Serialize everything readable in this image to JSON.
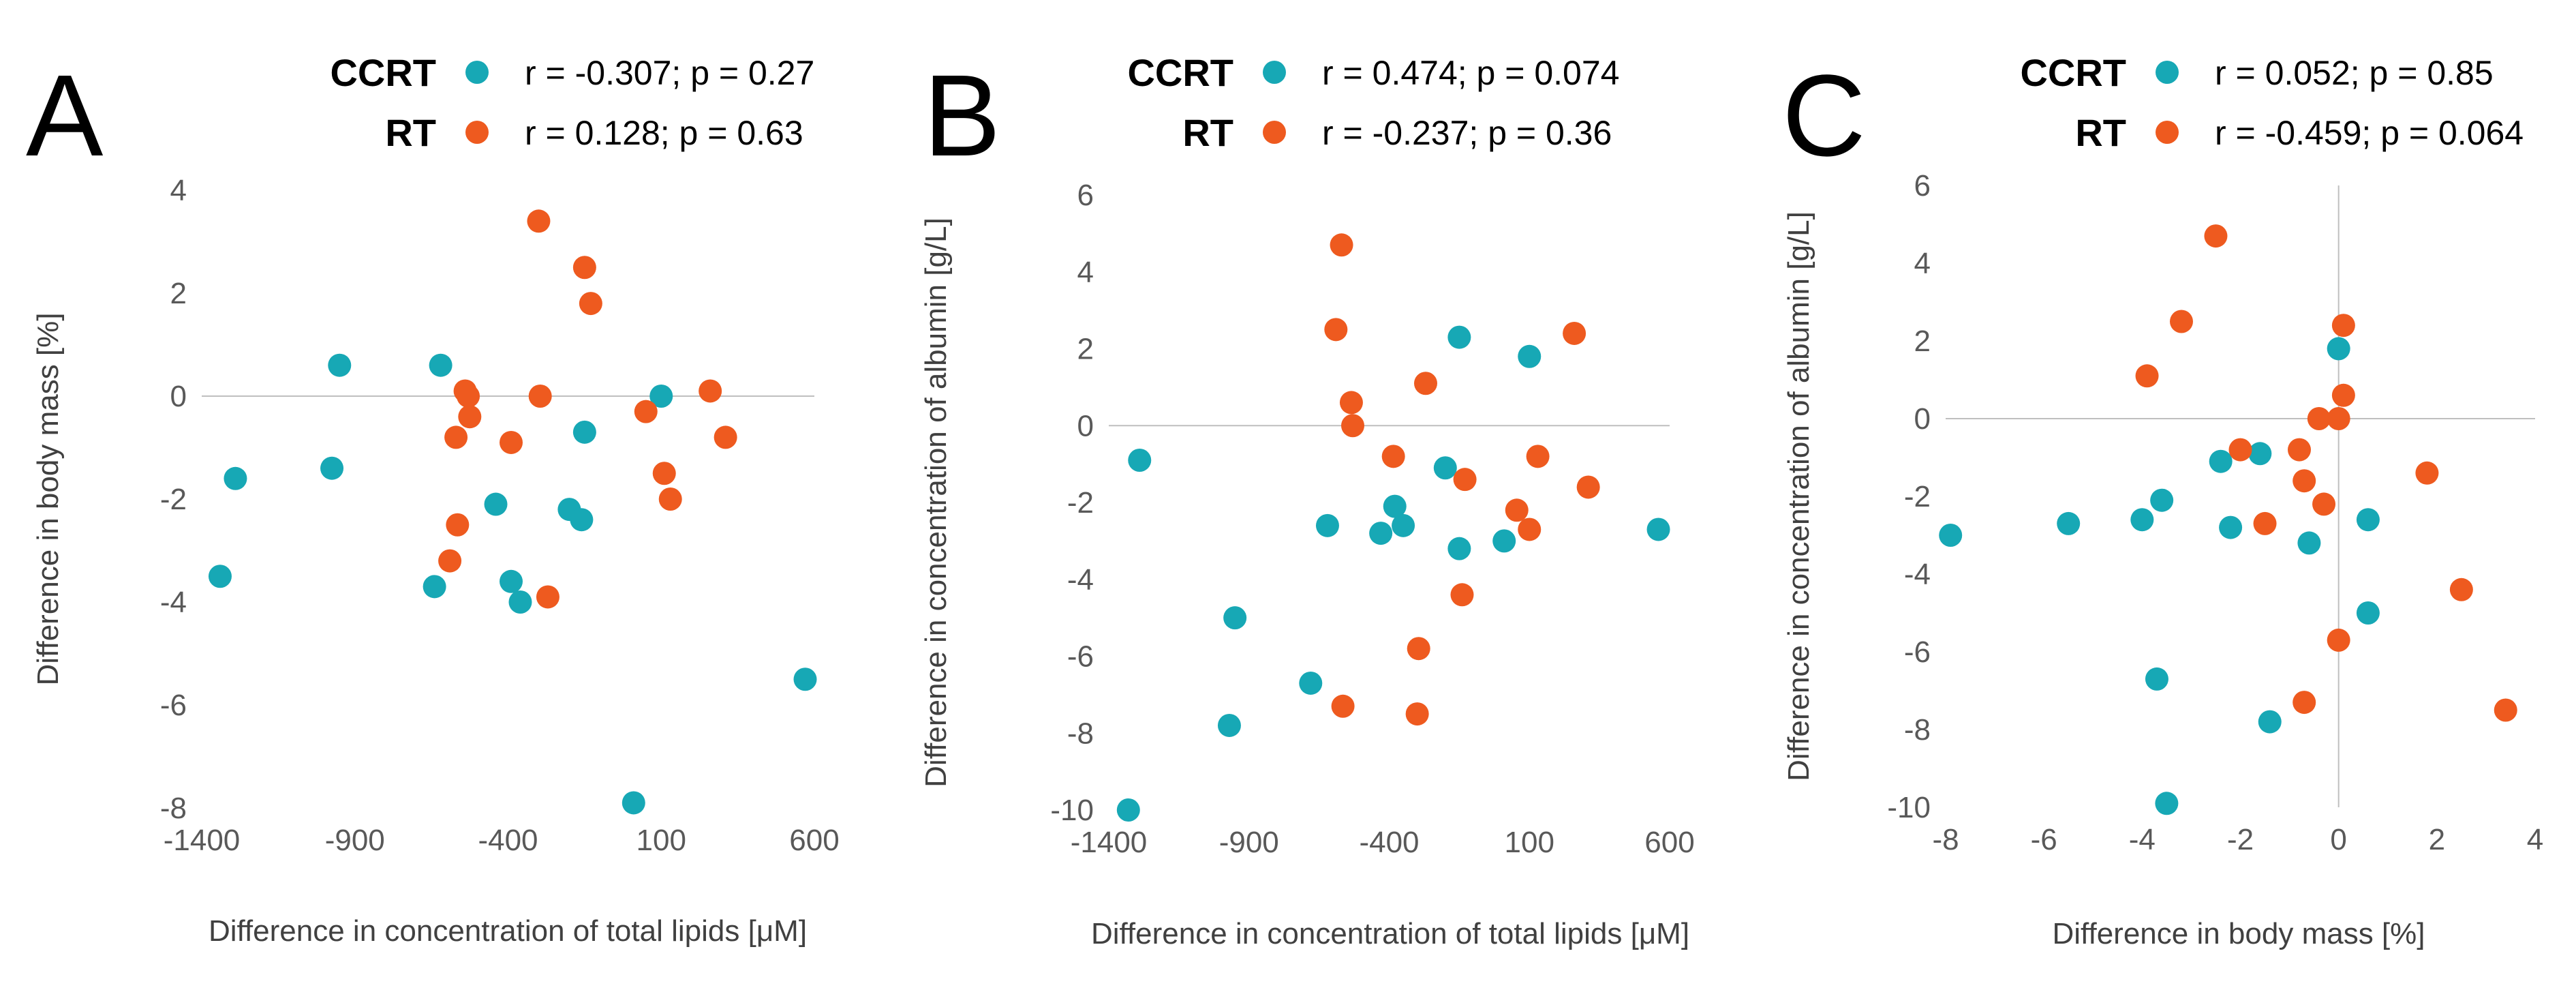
{
  "colors": {
    "CCRT": "#17a8b5",
    "RT": "#ee5a1f"
  },
  "chart_data": [
    {
      "type": "scatter",
      "panel": "A",
      "xlabel": "Difference in concentration of total lipids  [μM]",
      "ylabel": "Difference in body mass [%]",
      "xlim": [
        -1400,
        600
      ],
      "ylim": [
        -8,
        4
      ],
      "xticks": [
        -1400,
        -900,
        -400,
        100,
        600
      ],
      "yticks": [
        -8,
        -6,
        -4,
        -2,
        0,
        2,
        4
      ],
      "series": [
        {
          "name": "CCRT",
          "stats": "r = -0.307; p = 0.27",
          "x": [
            -1340,
            -1290,
            -975,
            -950,
            -640,
            -620,
            -440,
            -390,
            -360,
            -200,
            -160,
            -150,
            10,
            100,
            570
          ],
          "y": [
            -3.5,
            -1.6,
            -1.4,
            0.6,
            -3.7,
            0.6,
            -2.1,
            -3.6,
            -4.0,
            -2.2,
            -2.4,
            -0.7,
            -7.9,
            0.0,
            -5.5
          ]
        },
        {
          "name": "RT",
          "stats": "r = 0.128; p = 0.63",
          "x": [
            -590,
            -570,
            -565,
            -540,
            -530,
            -525,
            -390,
            -300,
            -295,
            -270,
            -150,
            -130,
            50,
            110,
            130,
            260,
            310
          ],
          "y": [
            -3.2,
            -0.8,
            -2.5,
            0.1,
            0.0,
            -0.4,
            -0.9,
            3.4,
            0.0,
            -3.9,
            2.5,
            1.8,
            -0.3,
            -1.5,
            -2.0,
            0.1,
            -0.8
          ]
        }
      ]
    },
    {
      "type": "scatter",
      "panel": "B",
      "xlabel": "Difference in concentration of total lipids  [μM]",
      "ylabel": "Difference in concentration of albumin [g/L]",
      "xlim": [
        -1400,
        600
      ],
      "ylim": [
        -10,
        6
      ],
      "xticks": [
        -1400,
        -900,
        -400,
        100,
        600
      ],
      "yticks": [
        -10,
        -8,
        -6,
        -4,
        -2,
        0,
        2,
        4,
        6
      ],
      "series": [
        {
          "name": "CCRT",
          "stats": "r = 0.474; p = 0.074",
          "x": [
            -1330,
            -1290,
            -970,
            -950,
            -680,
            -620,
            -430,
            -380,
            -350,
            -200,
            -150,
            -150,
            10,
            100,
            560
          ],
          "y": [
            -10.0,
            -0.9,
            -7.8,
            -5.0,
            -6.7,
            -2.6,
            -2.8,
            -2.1,
            -2.6,
            -1.1,
            2.3,
            -3.2,
            -3.0,
            1.8,
            -2.7
          ]
        },
        {
          "name": "RT",
          "stats": "r = -0.237; p = 0.36",
          "x": [
            -590,
            -570,
            -565,
            -535,
            -530,
            -385,
            -300,
            -295,
            -270,
            -140,
            -130,
            55,
            100,
            130,
            260,
            310
          ],
          "y": [
            2.5,
            4.7,
            -7.3,
            0.6,
            0.0,
            -0.8,
            -7.5,
            -5.8,
            1.1,
            -4.4,
            -1.4,
            -2.2,
            -2.7,
            -0.8,
            2.4,
            -1.6
          ]
        }
      ]
    },
    {
      "type": "scatter",
      "panel": "C",
      "xlabel": "Difference in body mass [%]",
      "ylabel": "Difference in concentration of albumin [g/L]",
      "xlim": [
        -8,
        4
      ],
      "ylim": [
        -10,
        6
      ],
      "xticks": [
        -8,
        -6,
        -4,
        -2,
        0,
        2,
        4
      ],
      "yticks": [
        -10,
        -8,
        -6,
        -4,
        -2,
        0,
        2,
        4,
        6
      ],
      "series": [
        {
          "name": "CCRT",
          "stats": "r = 0.052; p = 0.85",
          "x": [
            -7.9,
            -5.5,
            -4.0,
            -3.7,
            -3.6,
            -3.5,
            -2.4,
            -2.2,
            -1.6,
            -1.4,
            -0.6,
            0.0,
            0.6,
            0.6
          ],
          "y": [
            -3.0,
            -2.7,
            -2.6,
            -6.7,
            -2.1,
            -9.9,
            -1.1,
            -2.8,
            -0.9,
            -7.8,
            -3.2,
            1.8,
            -2.6,
            -5.0
          ]
        },
        {
          "name": "RT",
          "stats": "r = -0.459; p = 0.064",
          "x": [
            -3.9,
            -3.2,
            -2.5,
            -2.0,
            -1.5,
            -0.8,
            -0.7,
            -0.7,
            -0.4,
            -0.3,
            0.0,
            0.0,
            0.1,
            0.1,
            1.8,
            2.5,
            3.4
          ],
          "y": [
            1.1,
            2.5,
            4.7,
            -0.8,
            -2.7,
            -0.8,
            -1.6,
            -7.3,
            0.0,
            -2.2,
            -5.7,
            0.0,
            2.4,
            0.6,
            -1.4,
            -4.4,
            -7.5
          ]
        }
      ]
    }
  ]
}
